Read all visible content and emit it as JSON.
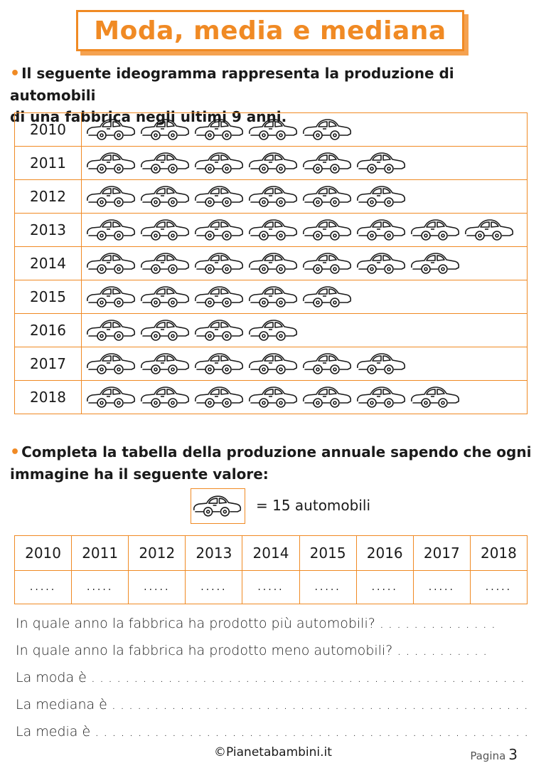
{
  "title": "Moda, media e mediana",
  "intro": {
    "bullet": "•",
    "line1": "Il seguente ideogramma rappresenta la produzione di automobili",
    "line2": "di una fabbrica negli ultimi 9 anni."
  },
  "pictogram": {
    "icon": "car-icon",
    "rows": [
      {
        "year": "2010",
        "cars": 5
      },
      {
        "year": "2011",
        "cars": 6
      },
      {
        "year": "2012",
        "cars": 6
      },
      {
        "year": "2013",
        "cars": 8
      },
      {
        "year": "2014",
        "cars": 7
      },
      {
        "year": "2015",
        "cars": 5
      },
      {
        "year": "2016",
        "cars": 4
      },
      {
        "year": "2017",
        "cars": 6
      },
      {
        "year": "2018",
        "cars": 7
      }
    ]
  },
  "instruction": {
    "bullet": "•",
    "line1": "Completa la tabella della produzione annuale sapendo che ogni",
    "line2": "immagine ha il seguente valore:"
  },
  "key": {
    "icon": "car-icon",
    "text": "= 15 automobili"
  },
  "production_table": {
    "years": [
      "2010",
      "2011",
      "2012",
      "2013",
      "2014",
      "2015",
      "2016",
      "2017",
      "2018"
    ],
    "blank": "....."
  },
  "questions": [
    "In quale anno la fabbrica ha prodotto più automobili? . . . . . . . . . . . . . .",
    "In quale anno la fabbrica ha prodotto meno automobili? . . . . . . . . . . .",
    "La moda è  . . . . . . . . . . . . . . . . . . . . . . . . . . . . . . . . . . . . . . . . . . . . . . . . . . .",
    "La mediana è  . . . . . . . . . . . . . . . . . . . . . . . . . . . . . . . . . . . . . . . . . . . . . . . . .",
    "La media è  . . . . . . . . . . . . . . . . . . . . . . . . . . . . . . . . . . . . . . . . . . . . . . . . . . ."
  ],
  "footer": {
    "site": "©Pianetabambini.it",
    "page_label": "Pagina",
    "page_number": "3"
  },
  "colors": {
    "accent": "#f08a24",
    "text": "#1a1a1a"
  }
}
